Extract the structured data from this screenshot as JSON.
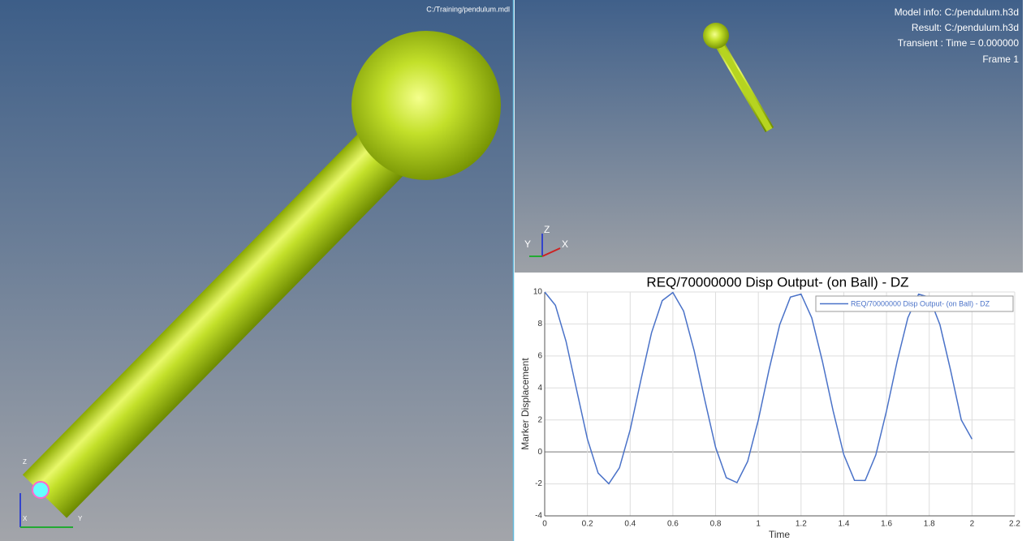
{
  "main_view": {
    "file": "C:/Training/pendulum.mdl",
    "triad": [
      "Z",
      "X",
      "Y"
    ]
  },
  "result_view": {
    "info": [
      "Model info: C:/pendulum.h3d",
      "Result: C:/pendulum.h3d",
      "Transient : Time = 0.000000",
      "Frame 1"
    ],
    "triad": [
      "Y",
      "Z",
      "X"
    ]
  },
  "chart_data": {
    "type": "line",
    "title": "REQ/70000000 Disp Output- (on Ball) - DZ",
    "x_label": "Time",
    "y_label": "Marker Displacement",
    "x": [
      0,
      0.05,
      0.1,
      0.15,
      0.2,
      0.25,
      0.3,
      0.35,
      0.4,
      0.45,
      0.5,
      0.55,
      0.6,
      0.65,
      0.7,
      0.75,
      0.8,
      0.85,
      0.9,
      0.95,
      1.0,
      1.05,
      1.1,
      1.15,
      1.2,
      1.25,
      1.3,
      1.35,
      1.4,
      1.45,
      1.5,
      1.55,
      1.6,
      1.65,
      1.7,
      1.75,
      1.8,
      1.85,
      1.9,
      1.95,
      2.0
    ],
    "series": [
      {
        "name": "REQ/70000000 Disp Output- (on Ball) - DZ",
        "color": "#4a72c8",
        "values": [
          10,
          9.17,
          6.91,
          3.84,
          0.81,
          -1.32,
          -1.99,
          -0.99,
          1.38,
          4.47,
          7.45,
          9.46,
          9.97,
          8.81,
          6.31,
          3.21,
          0.29,
          -1.61,
          -1.92,
          -0.6,
          2.0,
          5.12,
          7.95,
          9.68,
          9.87,
          8.38,
          5.67,
          2.57,
          -0.18,
          -1.78,
          -1.79,
          -0.19,
          2.57,
          5.69,
          8.39,
          9.87,
          9.68,
          7.95,
          5.11,
          2.0,
          0.8
        ]
      }
    ],
    "xlim": [
      0,
      2.2
    ],
    "xticks": [
      0,
      0.2,
      0.4,
      0.6,
      0.8,
      1,
      1.2,
      1.4,
      1.6,
      1.8,
      2,
      2.2
    ],
    "ylim": [
      -4,
      10
    ],
    "yticks": [
      -4,
      -2,
      0,
      2,
      4,
      6,
      8,
      10
    ],
    "grid": true
  }
}
